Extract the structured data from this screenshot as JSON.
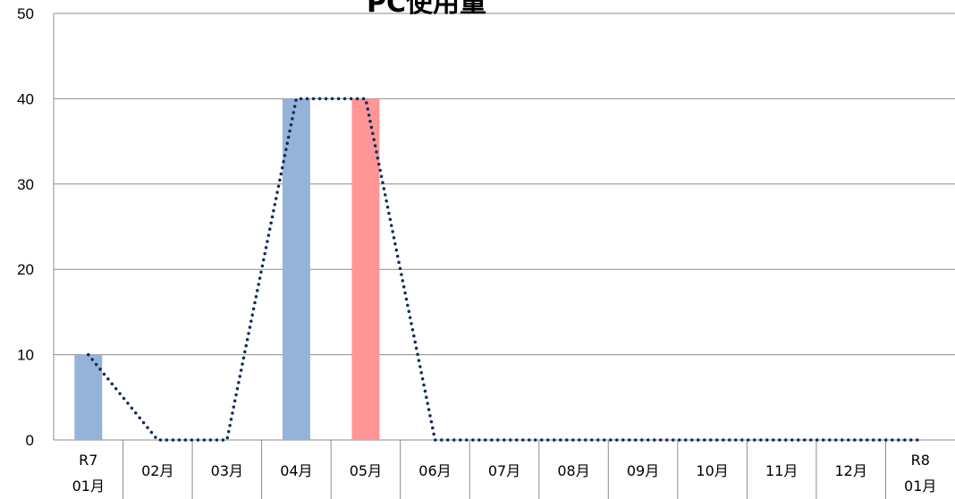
{
  "chart_data": {
    "type": "bar",
    "title": "PC使用量",
    "xlabel": "",
    "ylabel": "",
    "ylim": [
      0,
      50
    ],
    "yticks": [
      0,
      10,
      20,
      30,
      40,
      50
    ],
    "grid": true,
    "categories": [
      [
        "R7",
        "01月"
      ],
      [
        "02月"
      ],
      [
        "03月"
      ],
      [
        "04月"
      ],
      [
        "05月"
      ],
      [
        "06月"
      ],
      [
        "07月"
      ],
      [
        "08月"
      ],
      [
        "09月"
      ],
      [
        "10月"
      ],
      [
        "11月"
      ],
      [
        "12月"
      ],
      [
        "R8",
        "01月"
      ]
    ],
    "series": [
      {
        "type": "bar",
        "values": [
          10,
          0,
          0,
          40,
          40,
          0,
          0,
          0,
          0,
          0,
          0,
          0,
          0
        ],
        "colors": [
          "#95b3d7",
          "#95b3d7",
          "#95b3d7",
          "#95b3d7",
          "#ff9595",
          "#95b3d7",
          "#95b3d7",
          "#95b3d7",
          "#95b3d7",
          "#95b3d7",
          "#95b3d7",
          "#95b3d7",
          "#95b3d7"
        ]
      },
      {
        "type": "line",
        "style": "dotted",
        "color": "#0f2a5c",
        "values": [
          10,
          0,
          0,
          40,
          40,
          0,
          0,
          0,
          0,
          0,
          0,
          0,
          0
        ]
      }
    ]
  }
}
